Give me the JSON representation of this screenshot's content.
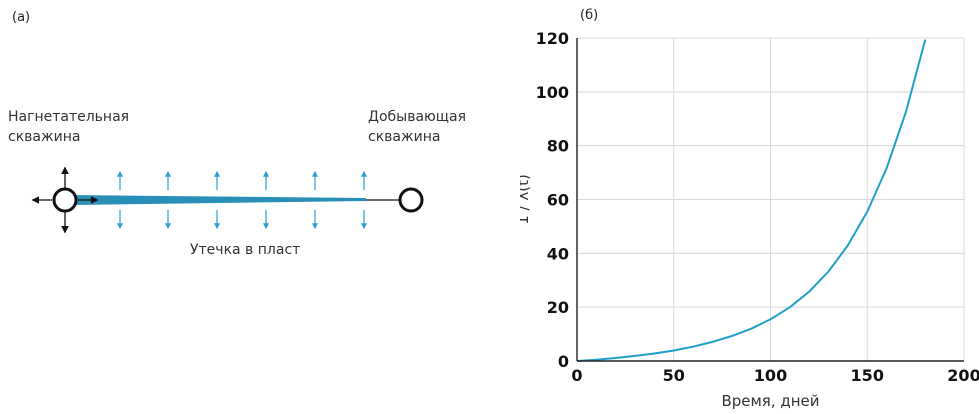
{
  "panel_a": {
    "label": "(a)",
    "injector_label_1": "Нагнетательная",
    "injector_label_2": "скважина",
    "producer_label_1": "Добывающая",
    "producer_label_2": "скважина",
    "leak_label": "Утечка в пласт",
    "colors": {
      "fracture": "#2a8fb8",
      "arrows": "#2a9fd6",
      "wells": "#111111"
    }
  },
  "chart_data": {
    "type": "line",
    "panel_label": "(б)",
    "xlabel": "Время, дней",
    "ylabel": "1 / λ(t)",
    "xlim": [
      0,
      200
    ],
    "ylim": [
      0,
      120
    ],
    "xticks": [
      "0",
      "50",
      "100",
      "150",
      "200"
    ],
    "yticks": [
      "0",
      "20",
      "40",
      "60",
      "80",
      "100",
      "120"
    ],
    "grid": true,
    "color": "#1fa0c8",
    "series": [
      {
        "x": [
          0,
          10,
          20,
          30,
          40,
          50,
          60,
          70,
          80,
          90,
          100,
          110,
          120,
          130,
          140,
          150,
          160,
          170,
          180
        ],
        "y": [
          0,
          0.5,
          1.1,
          1.9,
          2.8,
          3.9,
          5.3,
          7.1,
          9.3,
          12.0,
          15.5,
          20.0,
          25.8,
          33.3,
          43.0,
          55.5,
          71.6,
          92.5,
          119.4
        ]
      }
    ]
  }
}
